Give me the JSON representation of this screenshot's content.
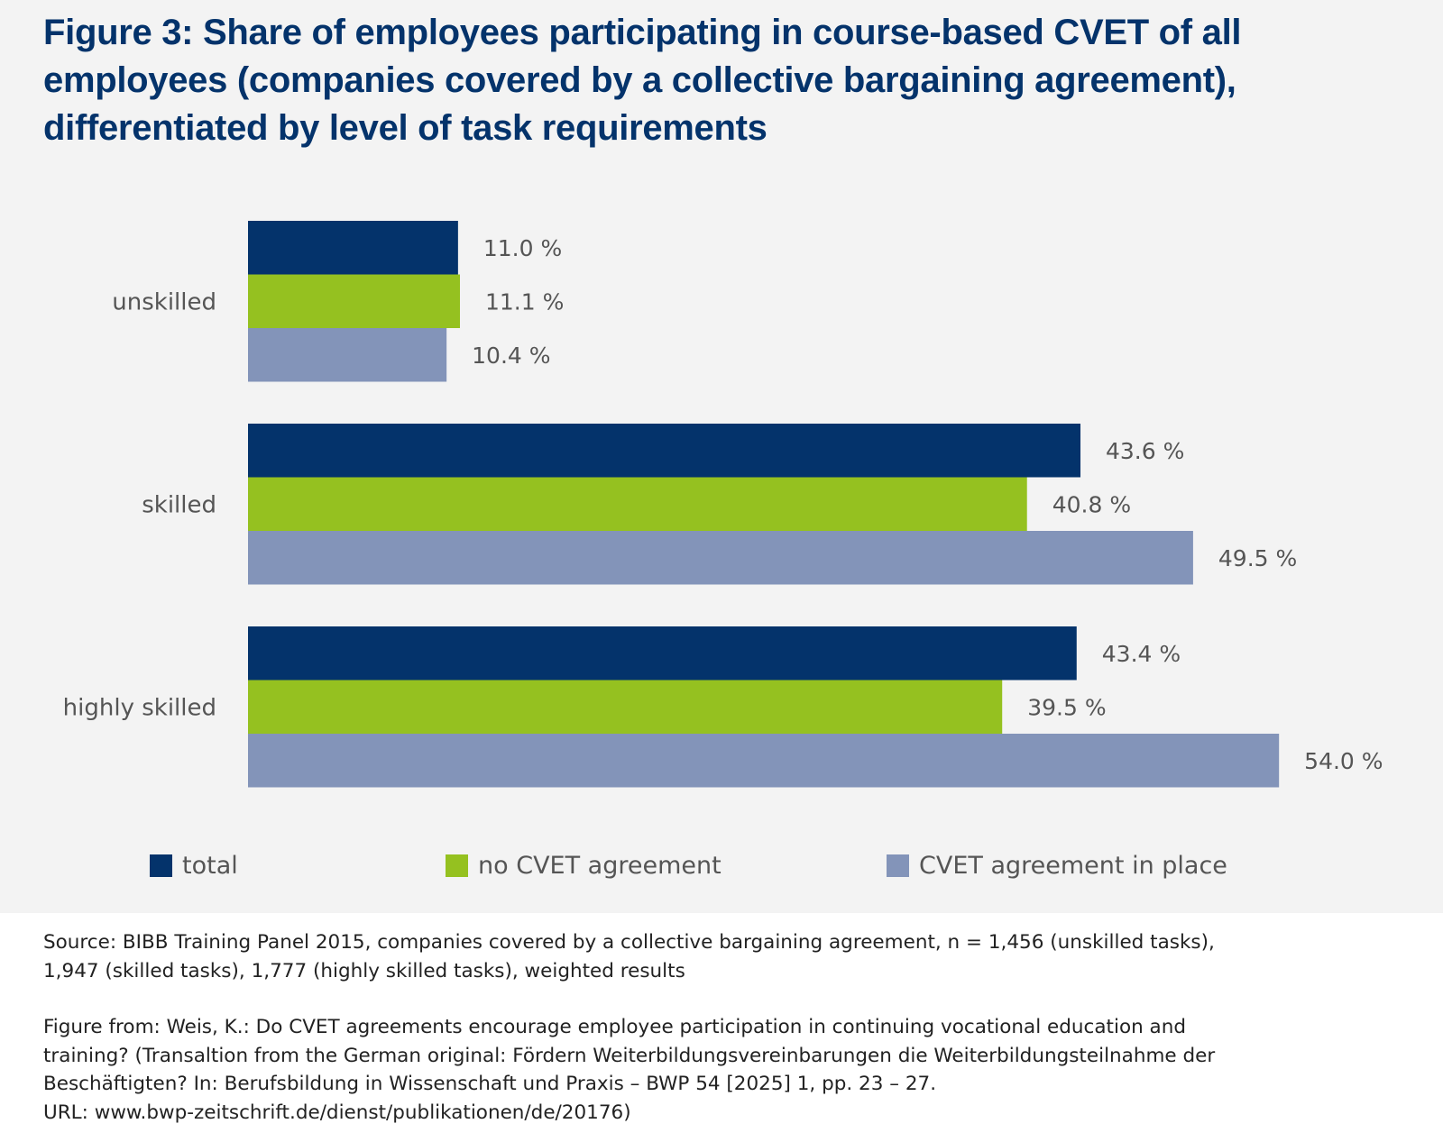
{
  "title": {
    "lines": [
      "Figure 3: Share of employees participating in course-based CVET of all",
      "employees (companies covered by a collective bargaining agreement),",
      "differentiated by level of task requirements"
    ]
  },
  "chart_data": {
    "type": "bar",
    "orientation": "horizontal",
    "title": "Figure 3: Share of employees participating in course-based CVET of all employees (companies covered by a collective bargaining agreement), differentiated by level of task requirements",
    "xlabel": "",
    "ylabel": "",
    "xlim": [
      0,
      54
    ],
    "grid": false,
    "unit": "%",
    "categories": [
      "unskilled",
      "skilled",
      "highly skilled"
    ],
    "series": [
      {
        "name": "total",
        "color": "#04336b",
        "values": [
          11.0,
          43.6,
          43.4
        ],
        "labels": [
          "11.0 %",
          "43.6 %",
          "43.4 %"
        ]
      },
      {
        "name": "no CVET agreement",
        "color": "#95c120",
        "values": [
          11.1,
          40.8,
          39.5
        ],
        "labels": [
          "11.1 %",
          "40.8 %",
          "39.5 %"
        ]
      },
      {
        "name": "CVET agreement in place",
        "color": "#8394b9",
        "values": [
          10.4,
          49.5,
          54.0
        ],
        "labels": [
          "10.4 %",
          "49.5 %",
          "54.0 %"
        ]
      }
    ],
    "legend": {
      "position": "bottom",
      "entries": [
        "total",
        "no CVET agreement",
        "CVET agreement in place"
      ]
    }
  },
  "footnotes": {
    "source_lines": [
      "Source: BIBB Training Panel 2015, companies covered by a collective bargaining agreement, n = 1,456 (unskilled tasks),",
      "1,947 (skilled tasks), 1,777 (highly skilled tasks), weighted results"
    ],
    "citation_lines": [
      "Figure from: Weis, K.: Do CVET agreements encourage employee participation in continuing vocational education and",
      "training? (Transaltion from the German original: Fördern Weiterbildungsvereinbarungen die Weiterbildungsteilnahme der",
      "Beschäftigten? In: Berufsbildung in Wissenschaft und Praxis – BWP 54 [2025] 1, pp. 23 – 27.",
      "URL: www.bwp-zeitschrift.de/dienst/publikationen/de/20176)"
    ]
  }
}
